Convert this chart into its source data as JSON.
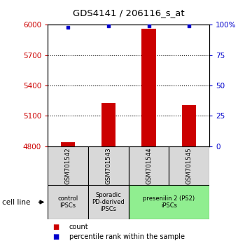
{
  "title": "GDS4141 / 206116_s_at",
  "samples": [
    "GSM701542",
    "GSM701543",
    "GSM701544",
    "GSM701545"
  ],
  "counts": [
    4840,
    5230,
    5960,
    5210
  ],
  "percentiles": [
    98,
    99,
    99,
    99
  ],
  "ylim_left": [
    4800,
    6000
  ],
  "ylim_right": [
    0,
    100
  ],
  "yticks_left": [
    4800,
    5100,
    5400,
    5700,
    6000
  ],
  "yticks_right": [
    0,
    25,
    50,
    75,
    100
  ],
  "bar_color": "#cc0000",
  "dot_color": "#0000cc",
  "label_color_left": "#cc0000",
  "label_color_right": "#0000cc",
  "cell_line_groups": [
    {
      "label": "control\nIPSCs",
      "start": 0,
      "end": 1,
      "color": "#d8d8d8"
    },
    {
      "label": "Sporadic\nPD-derived\niPSCs",
      "start": 1,
      "end": 2,
      "color": "#d8d8d8"
    },
    {
      "label": "presenilin 2 (PS2)\niPSCs",
      "start": 2,
      "end": 4,
      "color": "#90ee90"
    }
  ],
  "legend_items": [
    {
      "color": "#cc0000",
      "label": "count"
    },
    {
      "color": "#0000cc",
      "label": "percentile rank within the sample"
    }
  ],
  "cell_line_label": "cell line",
  "bar_width": 0.35
}
